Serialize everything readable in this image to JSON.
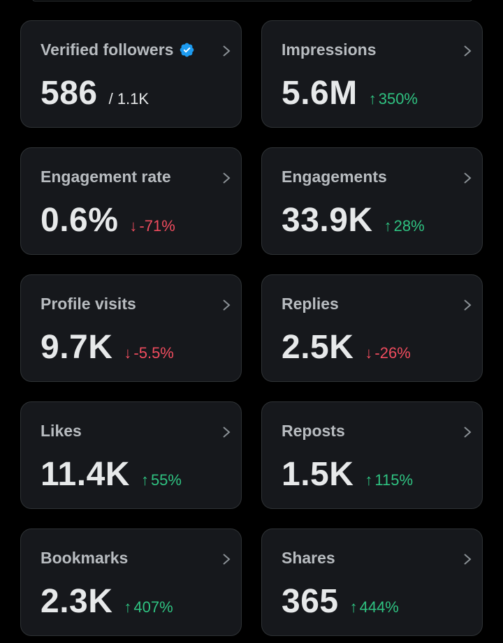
{
  "cards": [
    {
      "label": "Verified followers",
      "value": "586",
      "sub_total": "/ 1.1K",
      "verified": true
    },
    {
      "label": "Impressions",
      "value": "5.6M",
      "change": "350%",
      "direction": "up"
    },
    {
      "label": "Engagement rate",
      "value": "0.6%",
      "change": "-71%",
      "direction": "down"
    },
    {
      "label": "Engagements",
      "value": "33.9K",
      "change": "28%",
      "direction": "up"
    },
    {
      "label": "Profile visits",
      "value": "9.7K",
      "change": "-5.5%",
      "direction": "down"
    },
    {
      "label": "Replies",
      "value": "2.5K",
      "change": "-26%",
      "direction": "down"
    },
    {
      "label": "Likes",
      "value": "11.4K",
      "change": "55%",
      "direction": "up"
    },
    {
      "label": "Reposts",
      "value": "1.5K",
      "change": "115%",
      "direction": "up"
    },
    {
      "label": "Bookmarks",
      "value": "2.3K",
      "change": "407%",
      "direction": "up"
    },
    {
      "label": "Shares",
      "value": "365",
      "change": "444%",
      "direction": "up"
    }
  ],
  "arrows": {
    "up": "↑",
    "down": "↓"
  },
  "colors": {
    "up": "#2fc281",
    "down": "#ef4c5e",
    "verified": "#1d9bf0"
  }
}
